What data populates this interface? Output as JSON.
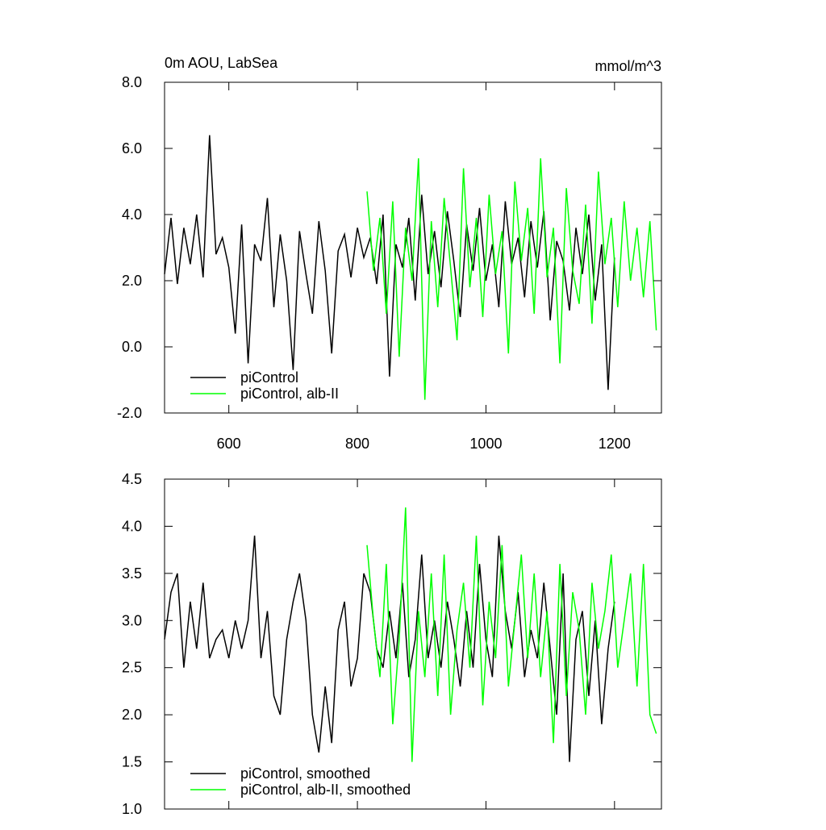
{
  "chart_data": [
    {
      "type": "line",
      "title": "0m AOU, LabSea",
      "units": "mmol/m^3",
      "xlim": [
        500,
        1273
      ],
      "xticks": [
        600,
        800,
        1000,
        1200
      ],
      "xtick_labels": true,
      "ylim": [
        -2,
        8
      ],
      "yticks": [
        {
          "value": -2,
          "label": "-2.0"
        },
        {
          "value": 0,
          "label": "0.0"
        },
        {
          "value": 2,
          "label": "2.0"
        },
        {
          "value": 4,
          "label": "4.0"
        },
        {
          "value": 6,
          "label": "6.0"
        },
        {
          "value": 8,
          "label": "8.0"
        }
      ],
      "series": [
        {
          "name": "piControl",
          "color": "#000000",
          "x": [
            500,
            510,
            520,
            530,
            540,
            550,
            560,
            570,
            580,
            590,
            600,
            610,
            620,
            630,
            640,
            650,
            660,
            670,
            680,
            690,
            700,
            710,
            720,
            730,
            740,
            750,
            760,
            770,
            780,
            790,
            800,
            810,
            820,
            830,
            840,
            850,
            860,
            870,
            880,
            890,
            900,
            910,
            920,
            930,
            940,
            950,
            960,
            970,
            980,
            990,
            1000,
            1010,
            1020,
            1030,
            1040,
            1050,
            1060,
            1070,
            1080,
            1090,
            1100,
            1110,
            1120,
            1130,
            1140,
            1150,
            1160,
            1170,
            1180,
            1190,
            1200
          ],
          "values": [
            2.2,
            3.9,
            1.9,
            3.6,
            2.5,
            4.0,
            2.1,
            6.4,
            2.8,
            3.3,
            2.4,
            0.4,
            3.7,
            -0.5,
            3.1,
            2.6,
            4.5,
            1.2,
            3.4,
            2.0,
            -0.7,
            3.5,
            2.2,
            1.0,
            3.8,
            2.3,
            -0.2,
            2.9,
            3.4,
            2.1,
            3.6,
            2.7,
            3.3,
            1.9,
            4.0,
            -0.9,
            3.1,
            2.4,
            3.9,
            1.4,
            4.6,
            2.2,
            3.5,
            1.8,
            4.1,
            2.6,
            0.9,
            3.7,
            2.3,
            4.2,
            2.0,
            3.1,
            1.2,
            4.4,
            2.5,
            3.3,
            1.5,
            3.8,
            2.4,
            4.1,
            0.8,
            3.2,
            2.6,
            1.1,
            3.6,
            2.2,
            4.0,
            1.4,
            3.1,
            -1.3,
            2.7
          ]
        },
        {
          "name": "piControl, alb-II",
          "color": "#00ff00",
          "x": [
            815,
            825,
            835,
            845,
            855,
            865,
            875,
            885,
            895,
            905,
            915,
            925,
            935,
            945,
            955,
            965,
            975,
            985,
            995,
            1005,
            1015,
            1025,
            1035,
            1045,
            1055,
            1065,
            1075,
            1085,
            1095,
            1105,
            1115,
            1125,
            1135,
            1145,
            1155,
            1165,
            1175,
            1185,
            1195,
            1205,
            1215,
            1225,
            1235,
            1245,
            1255,
            1265
          ],
          "values": [
            4.7,
            2.3,
            3.9,
            1.0,
            4.4,
            -0.3,
            3.6,
            2.0,
            5.7,
            -1.6,
            3.8,
            1.2,
            4.5,
            2.4,
            0.2,
            5.4,
            1.8,
            3.9,
            0.9,
            4.6,
            2.2,
            3.5,
            -0.2,
            5.0,
            2.6,
            4.2,
            1.0,
            5.7,
            2.1,
            3.6,
            -0.5,
            4.8,
            2.3,
            1.3,
            4.3,
            0.7,
            5.3,
            2.5,
            3.9,
            1.2,
            4.4,
            2.0,
            3.6,
            1.5,
            3.8,
            0.5
          ]
        }
      ]
    },
    {
      "type": "line",
      "xlim": [
        500,
        1273
      ],
      "xticks": [
        600,
        800,
        1000,
        1200
      ],
      "xtick_labels": false,
      "ylim": [
        1,
        4.5
      ],
      "yticks": [
        {
          "value": 1,
          "label": "1.0"
        },
        1.5,
        {
          "value": 2,
          "label": "2.0"
        },
        2.5,
        {
          "value": 3,
          "label": "3.0"
        },
        3.5,
        {
          "value": 4,
          "label": "4.0"
        },
        4.5
      ],
      "series": [
        {
          "name": "piControl, smoothed",
          "color": "#000000",
          "x": [
            500,
            510,
            520,
            530,
            540,
            550,
            560,
            570,
            580,
            590,
            600,
            610,
            620,
            630,
            640,
            650,
            660,
            670,
            680,
            690,
            700,
            710,
            720,
            730,
            740,
            750,
            760,
            770,
            780,
            790,
            800,
            810,
            820,
            830,
            840,
            850,
            860,
            870,
            880,
            890,
            900,
            910,
            920,
            930,
            940,
            950,
            960,
            970,
            980,
            990,
            1000,
            1010,
            1020,
            1030,
            1040,
            1050,
            1060,
            1070,
            1080,
            1090,
            1100,
            1110,
            1120,
            1130,
            1140,
            1150,
            1160,
            1170,
            1180,
            1190,
            1200
          ],
          "values": [
            2.8,
            3.3,
            3.5,
            2.5,
            3.2,
            2.7,
            3.4,
            2.6,
            2.8,
            2.9,
            2.6,
            3.0,
            2.7,
            3.0,
            3.9,
            2.6,
            3.1,
            2.2,
            2.0,
            2.8,
            3.2,
            3.5,
            3.0,
            2.0,
            1.6,
            2.3,
            1.7,
            2.9,
            3.2,
            2.3,
            2.6,
            3.5,
            3.3,
            2.7,
            2.5,
            3.1,
            2.6,
            3.4,
            2.4,
            2.8,
            3.7,
            2.6,
            3.0,
            2.5,
            3.2,
            2.8,
            2.3,
            3.1,
            2.5,
            3.6,
            2.8,
            2.4,
            3.9,
            3.1,
            2.7,
            3.3,
            2.4,
            2.9,
            2.6,
            3.4,
            2.7,
            2.0,
            3.5,
            1.5,
            2.8,
            3.1,
            2.2,
            3.0,
            1.9,
            2.7,
            3.2
          ]
        },
        {
          "name": "piControl, alb-II, smoothed",
          "color": "#00ff00",
          "x": [
            815,
            825,
            835,
            845,
            855,
            865,
            875,
            885,
            895,
            905,
            915,
            925,
            935,
            945,
            955,
            965,
            975,
            985,
            995,
            1005,
            1015,
            1025,
            1035,
            1045,
            1055,
            1065,
            1075,
            1085,
            1095,
            1105,
            1115,
            1125,
            1135,
            1145,
            1155,
            1165,
            1175,
            1185,
            1195,
            1205,
            1215,
            1225,
            1235,
            1245,
            1255,
            1265
          ],
          "values": [
            3.8,
            3.0,
            2.4,
            3.6,
            1.9,
            2.8,
            4.2,
            1.5,
            3.1,
            2.4,
            3.5,
            2.2,
            3.7,
            2.0,
            2.9,
            3.4,
            2.5,
            3.9,
            2.1,
            3.2,
            2.6,
            3.8,
            2.3,
            3.0,
            3.7,
            2.6,
            3.5,
            2.4,
            3.1,
            1.7,
            3.6,
            2.2,
            3.3,
            2.9,
            2.0,
            3.4,
            2.7,
            3.1,
            3.7,
            2.5,
            3.0,
            3.5,
            2.3,
            3.6,
            2.0,
            1.8
          ]
        }
      ]
    }
  ]
}
